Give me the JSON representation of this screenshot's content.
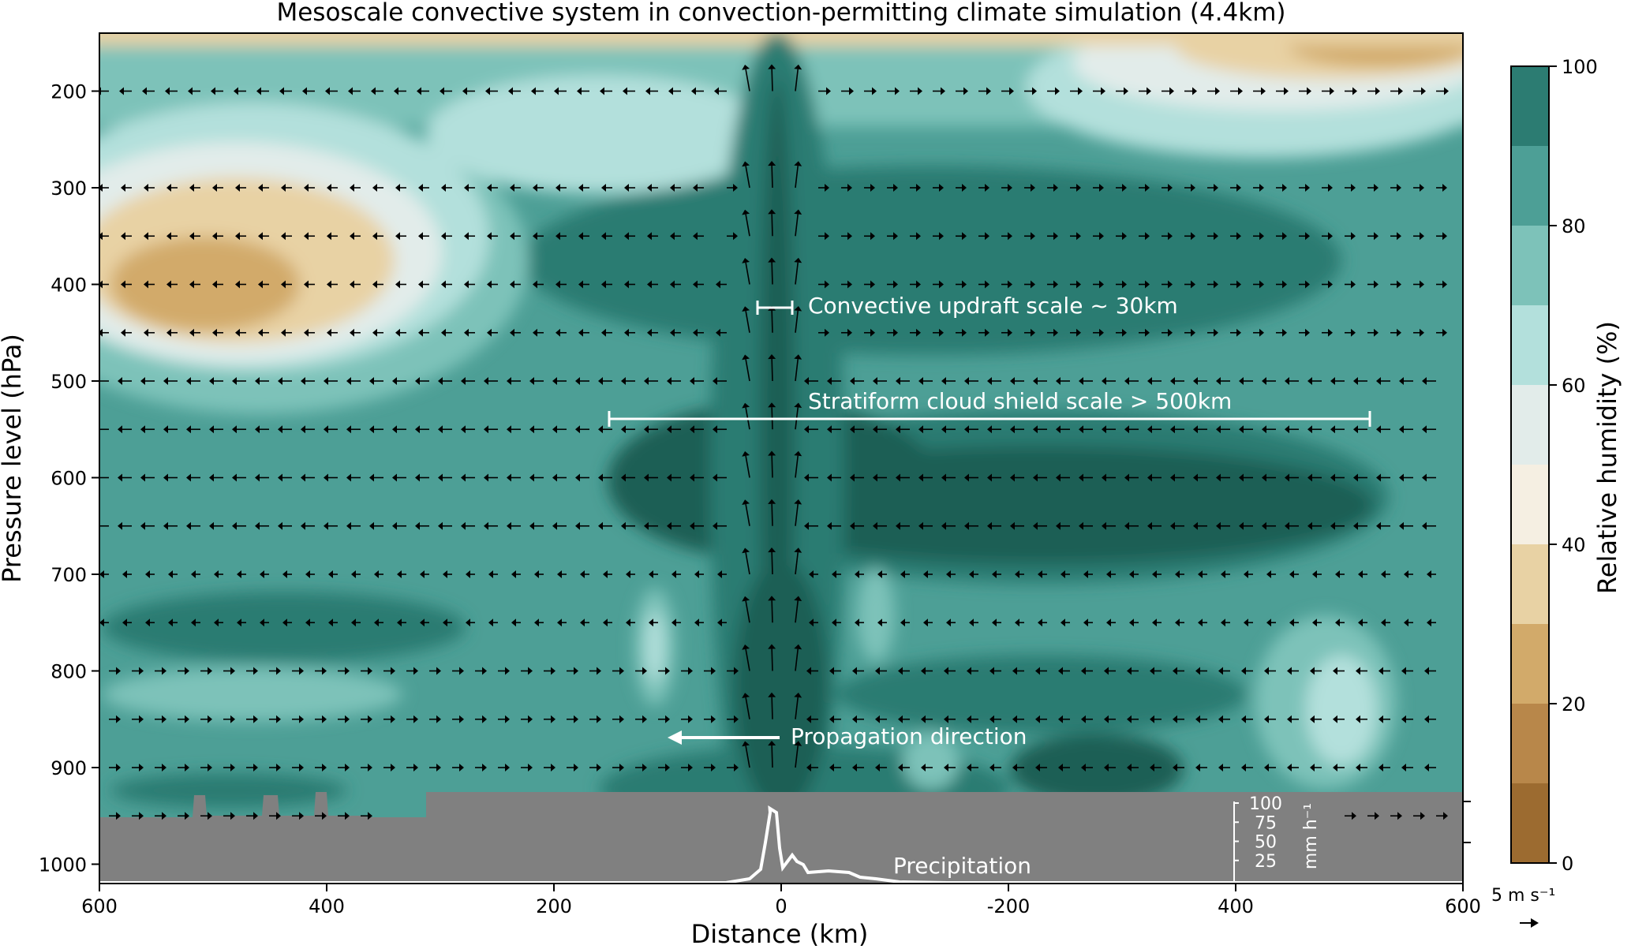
{
  "chart_data": {
    "type": "heatmap",
    "title": "Mesoscale convective system in convection-permitting climate simulation (4.4km)",
    "xlabel": "Distance (km)",
    "ylabel": "Pressure level (hPa)",
    "x_ticks": [
      "600",
      "400",
      "200",
      "0",
      "-200",
      "400",
      "600"
    ],
    "y_ticks": [
      200,
      300,
      400,
      500,
      600,
      700,
      800,
      900,
      1000
    ],
    "ylim": [
      1020,
      140
    ],
    "colorbar": {
      "label": "Relative humidity (%)",
      "ticks": [
        0,
        20,
        40,
        60,
        80,
        100
      ],
      "levels": [
        0,
        10,
        20,
        30,
        40,
        50,
        60,
        70,
        80,
        90,
        100
      ],
      "colors": [
        "#9c6b30",
        "#b8874a",
        "#d2aa6a",
        "#e8d2a4",
        "#f5efe2",
        "#e2ecea",
        "#b3e0dc",
        "#7dc2b9",
        "#4d9f96",
        "#2c7c72",
        "#1f5e55"
      ]
    },
    "wind_pressure_levels": [
      200,
      300,
      350,
      400,
      450,
      500,
      550,
      600,
      650,
      700,
      750,
      800,
      850,
      900,
      950
    ],
    "vector_key": "5 m s⁻¹",
    "precipitation": {
      "axis_ticks": [
        "100",
        "75",
        "50",
        "25"
      ],
      "unit": "mm h⁻¹",
      "peak_x": 10,
      "peak_value": 93
    },
    "annotations": {
      "updraft": "Convective updraft scale ~ 30km",
      "stratiform": "Stratiform cloud shield scale > 500km",
      "propagation": "Propagation direction",
      "precipitation": "Precipitation"
    }
  }
}
